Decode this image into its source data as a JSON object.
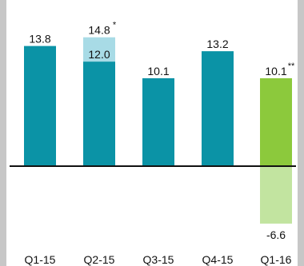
{
  "chart_data": {
    "type": "bar",
    "categories": [
      "Q1-15",
      "Q2-15",
      "Q3-15",
      "Q4-15",
      "Q1-16"
    ],
    "series": [
      {
        "values": [
          13.8,
          12.0,
          10.1,
          13.2,
          null
        ]
      },
      {
        "values": [
          null,
          14.8,
          null,
          null,
          null
        ]
      },
      {
        "values": [
          null,
          null,
          null,
          null,
          10.1
        ]
      },
      {
        "values": [
          null,
          null,
          null,
          null,
          -6.6
        ]
      }
    ],
    "data_labels": [
      "13.8",
      "14.8",
      "12.0",
      "10.1",
      "13.2",
      "10.1",
      "-6.6"
    ],
    "annotations": [
      "*",
      "**"
    ],
    "ylim": [
      -8.4,
      16.2
    ],
    "grid": false,
    "colors": {
      "main": "#0b93a6",
      "extension": "#a8dbe6",
      "highlight": "#8cc93c",
      "negative": "#c2e4a0",
      "axis": "#111111",
      "frame": "#c7c7c7"
    }
  }
}
